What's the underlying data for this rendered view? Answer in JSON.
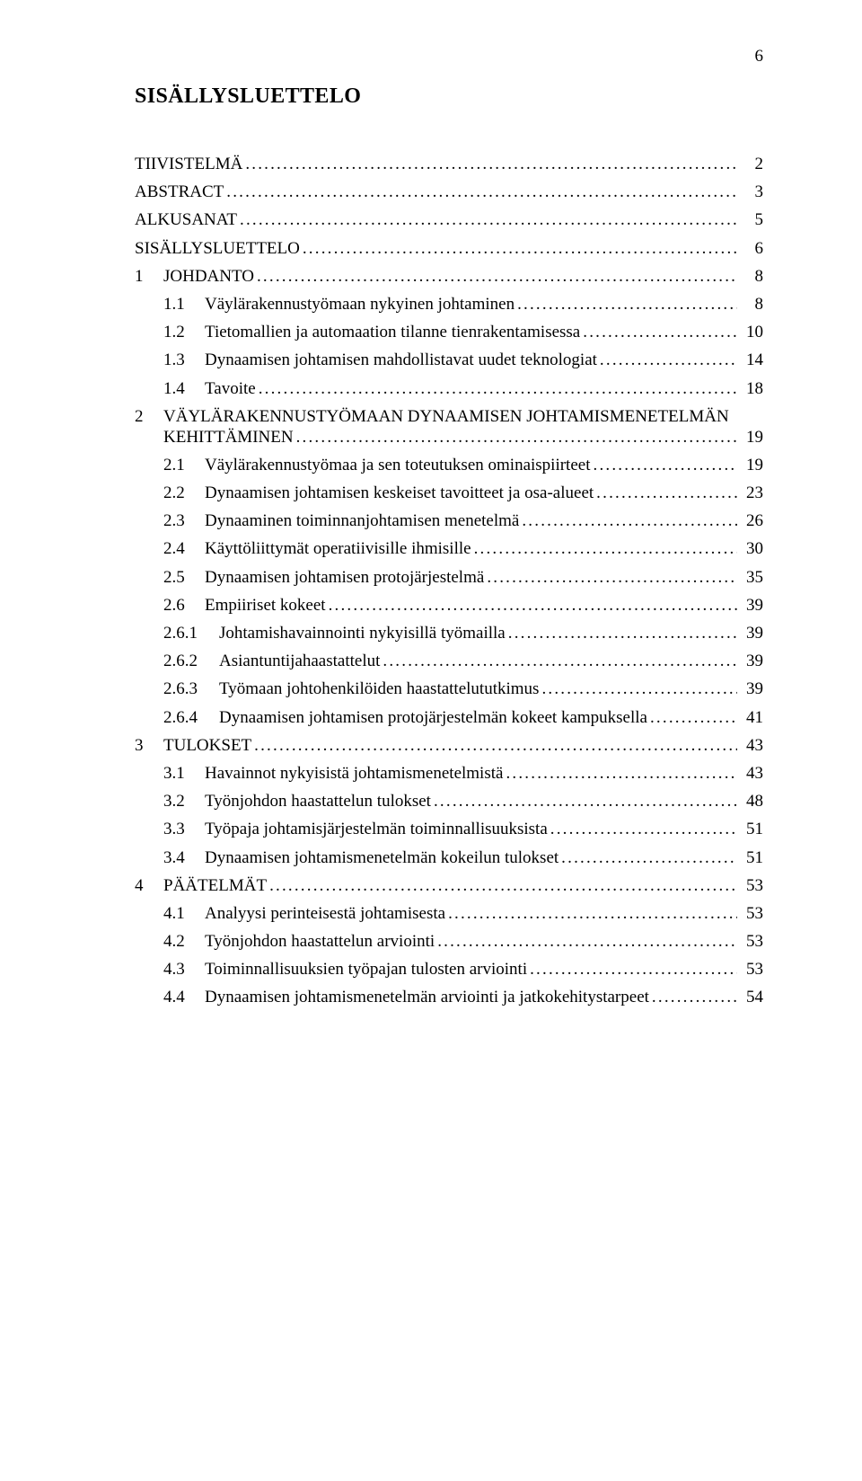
{
  "page_number": "6",
  "title": "SISÄLLYSLUETTELO",
  "font": {
    "family": "Times New Roman",
    "body_size_pt": 14,
    "title_size_pt": 18,
    "title_weight": "bold"
  },
  "colors": {
    "background": "#ffffff",
    "text": "#000000",
    "leader": "#000000"
  },
  "leader_char": ".",
  "toc": [
    {
      "level": 0,
      "num": "",
      "label": "TIIVISTELMÄ",
      "page": "2"
    },
    {
      "level": 0,
      "num": "",
      "label": "ABSTRACT",
      "page": "3"
    },
    {
      "level": 0,
      "num": "",
      "label": "ALKUSANAT",
      "page": "5"
    },
    {
      "level": 0,
      "num": "",
      "label": "SISÄLLYSLUETTELO",
      "page": "6"
    },
    {
      "level": 1,
      "num": "1",
      "label": "JOHDANTO",
      "page": "8"
    },
    {
      "level": 2,
      "num": "1.1",
      "label": "Väylärakennustyömaan nykyinen johtaminen",
      "page": "8"
    },
    {
      "level": 2,
      "num": "1.2",
      "label": "Tietomallien ja automaation tilanne tienrakentamisessa",
      "page": "10"
    },
    {
      "level": 2,
      "num": "1.3",
      "label": "Dynaamisen johtamisen mahdollistavat uudet teknologiat",
      "page": "14"
    },
    {
      "level": 2,
      "num": "1.4",
      "label": "Tavoite",
      "page": "18"
    },
    {
      "level": 1,
      "num": "2",
      "label": "VÄYLÄRAKENNUSTYÖMAAN DYNAAMISEN JOHTAMISMENETELMÄN",
      "label2": "KEHITTÄMINEN",
      "page": "19",
      "multiline": true
    },
    {
      "level": 2,
      "num": "2.1",
      "label": "Väylärakennustyömaa ja sen toteutuksen ominaispiirteet",
      "page": "19"
    },
    {
      "level": 2,
      "num": "2.2",
      "label": "Dynaamisen johtamisen keskeiset tavoitteet ja osa-alueet",
      "page": "23"
    },
    {
      "level": 2,
      "num": "2.3",
      "label": "Dynaaminen toiminnanjohtamisen menetelmä",
      "page": "26"
    },
    {
      "level": 2,
      "num": "2.4",
      "label": "Käyttöliittymät operatiivisille ihmisille",
      "page": "30"
    },
    {
      "level": 2,
      "num": "2.5",
      "label": "Dynaamisen johtamisen protojärjestelmä",
      "page": "35"
    },
    {
      "level": 2,
      "num": "2.6",
      "label": "Empiiriset kokeet",
      "page": "39"
    },
    {
      "level": 3,
      "num": "2.6.1",
      "label": "Johtamishavainnointi nykyisillä työmailla",
      "page": "39"
    },
    {
      "level": 3,
      "num": "2.6.2",
      "label": "Asiantuntijahaastattelut",
      "page": "39"
    },
    {
      "level": 3,
      "num": "2.6.3",
      "label": "Työmaan johtohenkilöiden haastattelututkimus",
      "page": "39"
    },
    {
      "level": 3,
      "num": "2.6.4",
      "label": "Dynaamisen johtamisen protojärjestelmän kokeet kampuksella",
      "page": "41"
    },
    {
      "level": 1,
      "num": "3",
      "label": "TULOKSET",
      "page": "43"
    },
    {
      "level": 2,
      "num": "3.1",
      "label": "Havainnot nykyisistä johtamismenetelmistä",
      "page": "43"
    },
    {
      "level": 2,
      "num": "3.2",
      "label": "Työnjohdon haastattelun tulokset",
      "page": "48"
    },
    {
      "level": 2,
      "num": "3.3",
      "label": "Työpaja johtamisjärjestelmän toiminnallisuuksista",
      "page": "51"
    },
    {
      "level": 2,
      "num": "3.4",
      "label": "Dynaamisen johtamismenetelmän kokeilun tulokset",
      "page": "51"
    },
    {
      "level": 1,
      "num": "4",
      "label": "PÄÄTELMÄT",
      "page": "53"
    },
    {
      "level": 2,
      "num": "4.1",
      "label": "Analyysi perinteisestä johtamisesta",
      "page": "53"
    },
    {
      "level": 2,
      "num": "4.2",
      "label": "Työnjohdon haastattelun arviointi",
      "page": "53"
    },
    {
      "level": 2,
      "num": "4.3",
      "label": "Toiminnallisuuksien työpajan tulosten arviointi",
      "page": "53"
    },
    {
      "level": 2,
      "num": "4.4",
      "label": "Dynaamisen johtamismenetelmän arviointi ja jatkokehitystarpeet",
      "page": "54"
    }
  ]
}
